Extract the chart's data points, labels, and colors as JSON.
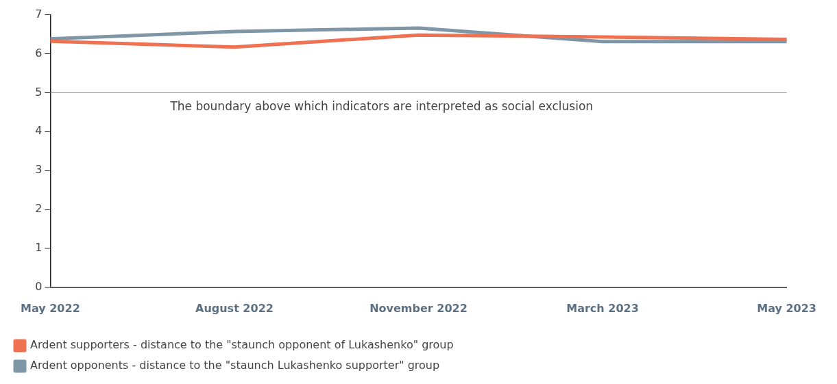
{
  "chart_data": {
    "type": "line",
    "categories": [
      "May 2022",
      "August 2022",
      "November 2022",
      "March 2023",
      "May 2023"
    ],
    "series": [
      {
        "name": "Ardent supporters - distance to the \"staunch opponent of Lukashenko\" group",
        "color": "#f07052",
        "values": [
          6.32,
          6.17,
          6.48,
          6.43,
          6.37
        ]
      },
      {
        "name": "Ardent opponents - distance to the \"staunch Lukashenko supporter\" group",
        "color": "#7f96a6",
        "values": [
          6.38,
          6.57,
          6.66,
          6.31,
          6.31
        ]
      }
    ],
    "ylim": [
      0,
      7
    ],
    "yticks": [
      0,
      1,
      2,
      3,
      4,
      5,
      6,
      7
    ],
    "ref_lines": [
      {
        "axis": "y",
        "value": 5,
        "label": "The boundary above which indicators are interpreted as social exclusion",
        "color": "#7f96a6"
      }
    ],
    "grid": false,
    "legend": "bottom",
    "marker": "none",
    "line_style": "solid"
  }
}
